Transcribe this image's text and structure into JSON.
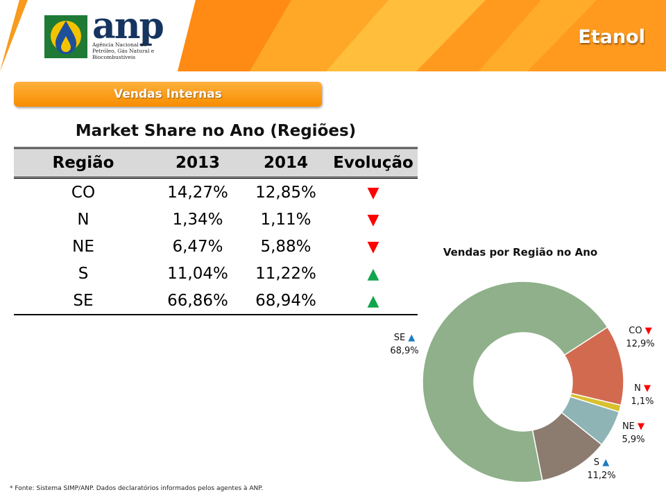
{
  "header": {
    "logo_text": "anp",
    "logo_subtitle": "Agência Nacional do Petróleo, Gás Natural e Biocombustíveis",
    "title": "Etanol"
  },
  "section": {
    "label": "Vendas Internas"
  },
  "table": {
    "title": "Market Share no Ano (Regiões)",
    "headers": [
      "Região",
      "2013",
      "2014",
      "Evolução"
    ],
    "rows": [
      {
        "region": "CO",
        "y2013": "14,27%",
        "y2014": "12,85%",
        "trend": "▼",
        "trend_icon": "arrow-down-red"
      },
      {
        "region": "N",
        "y2013": "1,34%",
        "y2014": "1,11%",
        "trend": "▼",
        "trend_icon": "arrow-down-red"
      },
      {
        "region": "NE",
        "y2013": "6,47%",
        "y2014": "5,88%",
        "trend": "▼",
        "trend_icon": "arrow-down-red"
      },
      {
        "region": "S",
        "y2013": "11,04%",
        "y2014": "11,22%",
        "trend": "▲",
        "trend_icon": "arrow-up-green"
      },
      {
        "region": "SE",
        "y2013": "66,86%",
        "y2014": "68,94%",
        "trend": "▲",
        "trend_icon": "arrow-up-green"
      }
    ]
  },
  "chart_data": {
    "type": "pie",
    "title": "Vendas por Região no Ano",
    "donut": true,
    "start": "top-right, clockwise",
    "categories": [
      "CO",
      "N",
      "NE",
      "S",
      "SE"
    ],
    "values": [
      12.9,
      1.1,
      5.9,
      11.2,
      68.9
    ],
    "data_labels": [
      "12,9%",
      "1,1%",
      "5,9%",
      "11,2%",
      "68,9%"
    ],
    "trend_markers": [
      "▼",
      "▼",
      "▼",
      "▲",
      "▲"
    ],
    "colors": [
      "#d26a50",
      "#d8c02e",
      "#8fb4b6",
      "#8c7b6f",
      "#8fb08a"
    ],
    "legend": "none"
  },
  "footnote": "*  Fonte: Sistema SIMP/ANP. Dados declaratórios informados pelos agentes à ANP.",
  "colors": {
    "accent_orange": "#f78c00",
    "down": "#ff0000",
    "up_table": "#12a64c",
    "up_chart": "#1c7cc1"
  }
}
